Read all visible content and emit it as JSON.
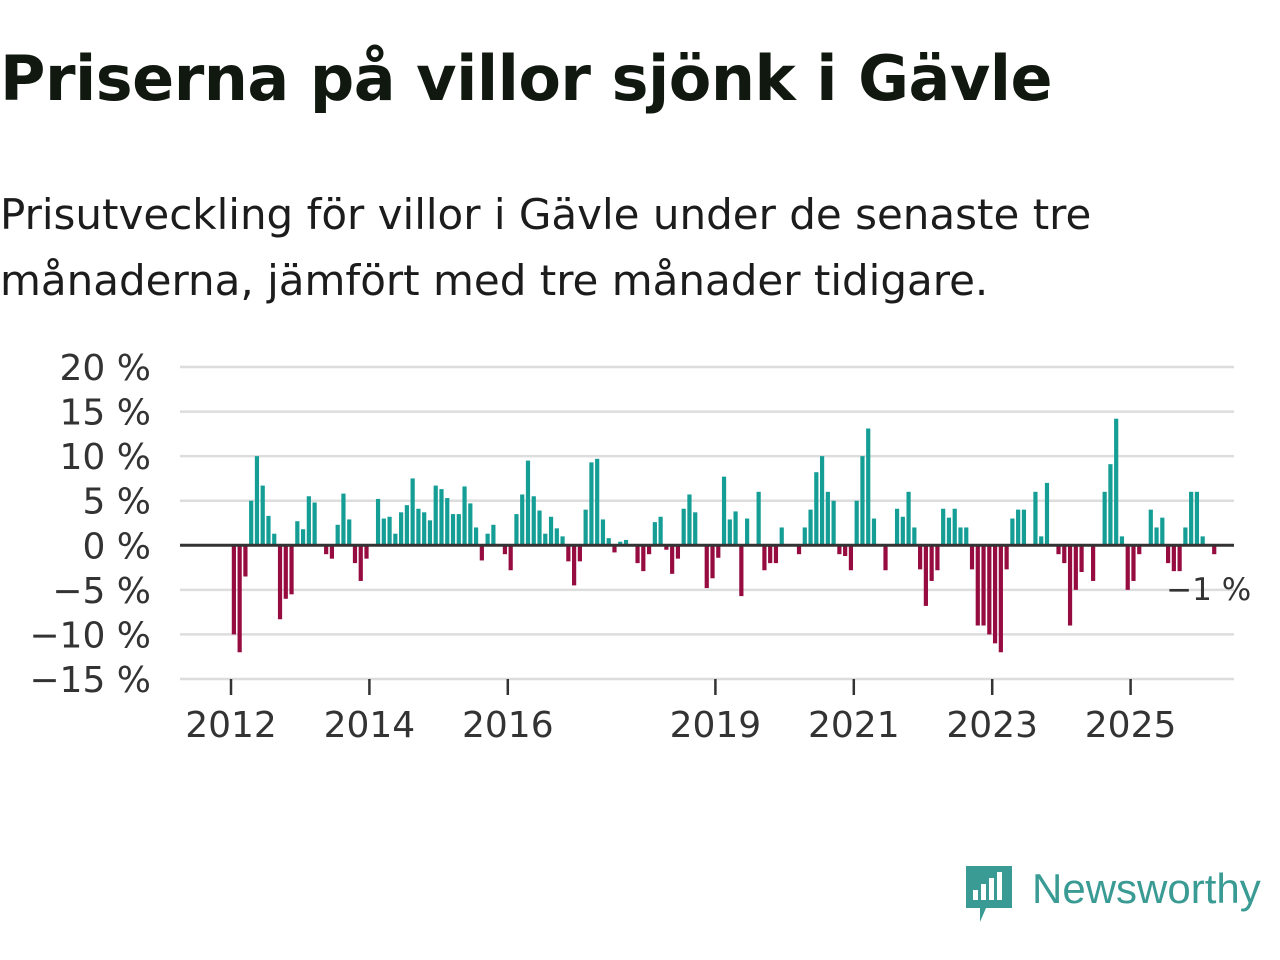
{
  "title": "Priserna på villor sjönk i Gävle",
  "subtitle": "Prisutveckling för villor i Gävle under de senaste tre månaderna, jämfört med tre månader tidigare.",
  "brand": {
    "name": "Newsworthy",
    "color": "#3a9b94",
    "icon": "newsworthy-logo-icon"
  },
  "colors": {
    "positive": "#159e96",
    "negative": "#960b40",
    "grid": "#dddddd",
    "zero": "#333333"
  },
  "chart_data": {
    "type": "bar",
    "unit": "%",
    "ylim": [
      -15,
      20
    ],
    "yticks": [
      20,
      15,
      10,
      5,
      0,
      -5,
      -10,
      -15
    ],
    "ytick_labels": [
      "20 %",
      "15 %",
      "10 %",
      "5 %",
      "0 %",
      "−5 %",
      "−10 %",
      "−15 %"
    ],
    "x_start": 2012.0,
    "x_end": 2026.0,
    "xticks": [
      {
        "year": 2012,
        "label": "2012"
      },
      {
        "year": 2014,
        "label": "2014"
      },
      {
        "year": 2016,
        "label": "2016"
      },
      {
        "year": 2019,
        "label": "2019"
      },
      {
        "year": 2021,
        "label": "2021"
      },
      {
        "year": 2023,
        "label": "2023"
      },
      {
        "year": 2025,
        "label": "2025"
      }
    ],
    "start_month": "2012-01",
    "values": [
      -10,
      -12,
      -3.5,
      5,
      10,
      6.7,
      3.3,
      1.3,
      -8.3,
      -6,
      -5.5,
      2.7,
      1.8,
      5.5,
      4.8,
      0,
      -1,
      -1.5,
      2.3,
      5.8,
      2.9,
      -2,
      -4,
      -1.5,
      0,
      5.2,
      3,
      3.2,
      1.3,
      3.7,
      4.5,
      7.5,
      4.1,
      3.7,
      2.8,
      6.7,
      6.3,
      5.3,
      3.5,
      3.5,
      6.6,
      4.7,
      2,
      -1.7,
      1.3,
      2.3,
      0,
      -1,
      -2.8,
      3.5,
      5.7,
      9.5,
      5.5,
      3.9,
      1.3,
      3.2,
      1.9,
      1,
      -1.8,
      -4.5,
      -1.8,
      4,
      9.3,
      9.7,
      2.9,
      0.8,
      -0.8,
      0.4,
      0.6,
      0,
      -2,
      -2.9,
      -1,
      2.6,
      3.2,
      -0.5,
      -3.2,
      -1.5,
      4.1,
      5.7,
      3.7,
      0,
      -4.8,
      -3.7,
      -1.4,
      7.7,
      2.9,
      3.8,
      -5.7,
      3,
      0,
      6,
      -2.8,
      -2,
      -2,
      2,
      0,
      0,
      -1,
      2,
      4,
      8.2,
      10,
      6,
      5,
      -1,
      -1.2,
      -2.8,
      5,
      10,
      13.1,
      3,
      0,
      -2.8,
      0,
      4.1,
      3.2,
      6,
      2,
      -2.7,
      -6.8,
      -4,
      -2.8,
      4.1,
      3.1,
      4.1,
      2,
      2,
      -2.7,
      -9,
      -9,
      -10,
      -11,
      -12,
      -2.7,
      3,
      4,
      4,
      0,
      6,
      1,
      7,
      0,
      -1,
      -2,
      -9,
      -5,
      -3,
      0,
      -4,
      0,
      6,
      9.1,
      14.2,
      1,
      -5,
      -4,
      -1,
      0,
      4,
      2,
      3.1,
      -2,
      -2.9,
      -2.9,
      2,
      6,
      6,
      1,
      0,
      -1
    ],
    "annotation": {
      "label": "−1 %",
      "value": -1
    }
  }
}
